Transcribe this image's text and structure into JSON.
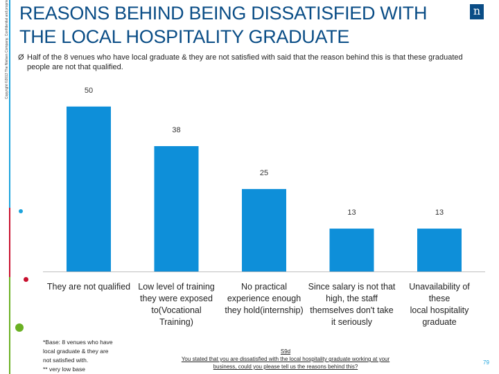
{
  "copyright": "Copyright ©2013 The Nielsen Company. Confidential and proprietary.",
  "title": "REASONS BEHIND BEING DISSATISFIED WITH THE LOCAL HOSPITALITY GRADUATE",
  "logo_text": "n",
  "bullet_text": "Half of the 8 venues who have local graduate & they are not satisfied with said that the reason behind this is that these graduated people are not that qualified.",
  "bullet_arrow": "Ø",
  "chart_data": {
    "type": "bar",
    "categories": [
      "They are not qualified",
      "Low level of training they were exposed to(Vocational Training)",
      "No practical experience enough they hold(internship)",
      "Since salary is not that high, the staff themselves don't take it seriously",
      "Unavailability of these local hospitality graduate"
    ],
    "values": [
      50,
      38,
      25,
      13,
      13
    ],
    "value_labels": [
      "50",
      "38",
      "25",
      "13",
      "13"
    ],
    "title": "",
    "xlabel": "",
    "ylabel": "",
    "ylim": [
      0,
      55
    ],
    "bar_color": "#0e8fd9"
  },
  "category_lines": [
    [
      "They are not qualified"
    ],
    [
      "Low level of training",
      "they were exposed",
      "to(Vocational",
      "Training)"
    ],
    [
      "No practical",
      "experience enough",
      "they hold(internship)"
    ],
    [
      "Since salary is not that",
      "high, the staff",
      "themselves don't take",
      "it seriously"
    ],
    [
      "Unavailability of these",
      "local hospitality",
      "graduate"
    ]
  ],
  "footnote": {
    "line1": "*Base: 8 venues who have",
    "line2": "local graduate & they are",
    "line3": "not satisfied with.",
    "line4": "** very low base"
  },
  "question": {
    "id": "S9d",
    "line1": "You stated that you are dissatisfied with the local hospitality graduate working at your",
    "line2": "business, could you please tell us the reasons behind this?"
  },
  "page_number": "79",
  "accent_colors": {
    "blue": "#1ca3dc",
    "red": "#c8102e",
    "green": "#6ab023"
  }
}
